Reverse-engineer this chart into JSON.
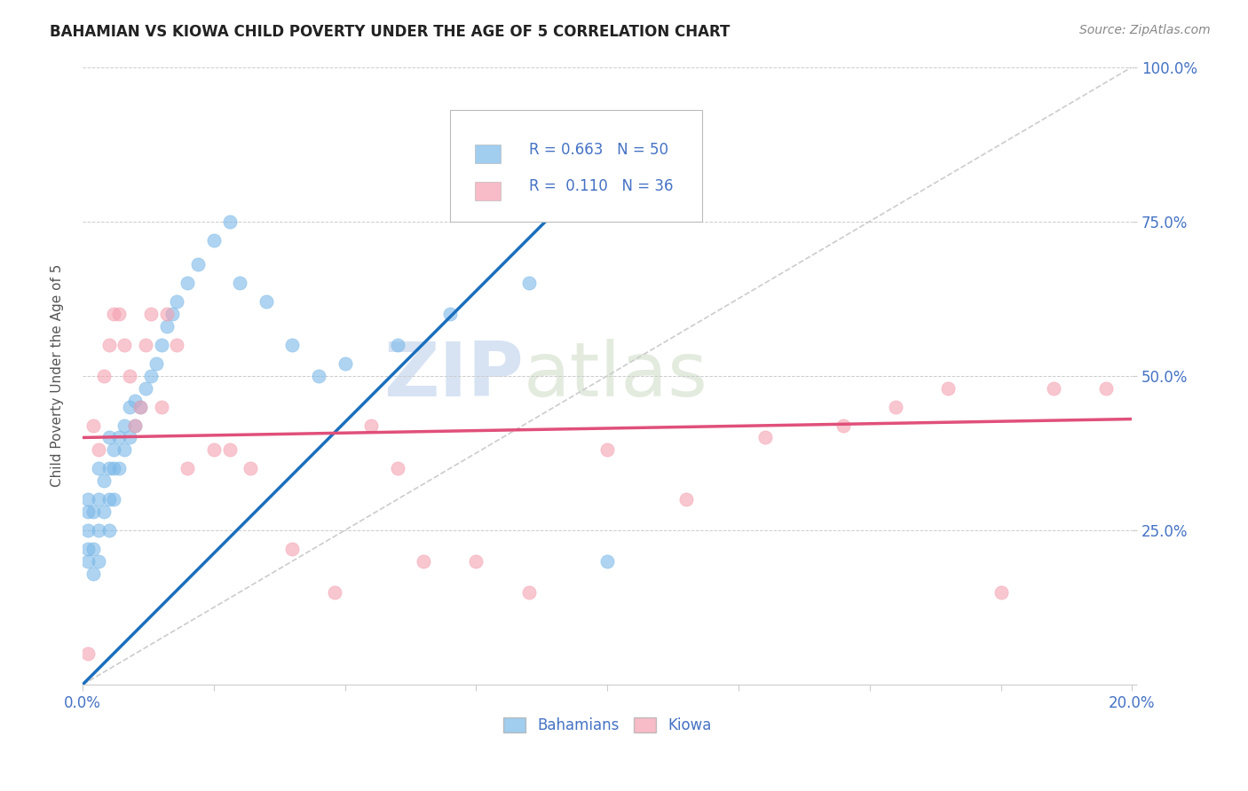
{
  "title": "BAHAMIAN VS KIOWA CHILD POVERTY UNDER THE AGE OF 5 CORRELATION CHART",
  "source_text": "Source: ZipAtlas.com",
  "ylabel": "Child Poverty Under the Age of 5",
  "xlim": [
    0.0,
    0.2
  ],
  "ylim": [
    0.0,
    1.0
  ],
  "xticks": [
    0.0,
    0.025,
    0.05,
    0.075,
    0.1,
    0.125,
    0.15,
    0.175,
    0.2
  ],
  "xticklabels": [
    "0.0%",
    "",
    "",
    "",
    "",
    "",
    "",
    "",
    "20.0%"
  ],
  "yticks": [
    0.0,
    0.25,
    0.5,
    0.75,
    1.0
  ],
  "right_yticklabels": [
    "",
    "25.0%",
    "50.0%",
    "75.0%",
    "100.0%"
  ],
  "bahamian_color": "#7ab8e8",
  "kiowa_color": "#f4a0b0",
  "bahamian_line_color": "#1a6fbd",
  "kiowa_line_color": "#e0507a",
  "bahamian_r": 0.663,
  "bahamian_n": 50,
  "kiowa_r": 0.11,
  "kiowa_n": 36,
  "legend_labels": [
    "Bahamians",
    "Kiowa"
  ],
  "watermark_zip": "ZIP",
  "watermark_atlas": "atlas",
  "bahamian_x": [
    0.001,
    0.001,
    0.001,
    0.001,
    0.001,
    0.002,
    0.002,
    0.002,
    0.003,
    0.003,
    0.003,
    0.003,
    0.004,
    0.004,
    0.005,
    0.005,
    0.005,
    0.005,
    0.006,
    0.006,
    0.006,
    0.007,
    0.007,
    0.008,
    0.008,
    0.009,
    0.009,
    0.01,
    0.01,
    0.011,
    0.012,
    0.013,
    0.014,
    0.015,
    0.016,
    0.017,
    0.018,
    0.02,
    0.022,
    0.025,
    0.028,
    0.03,
    0.035,
    0.04,
    0.045,
    0.05,
    0.06,
    0.07,
    0.085,
    0.1
  ],
  "bahamian_y": [
    0.2,
    0.22,
    0.25,
    0.28,
    0.3,
    0.18,
    0.22,
    0.28,
    0.2,
    0.25,
    0.3,
    0.35,
    0.28,
    0.33,
    0.25,
    0.3,
    0.35,
    0.4,
    0.3,
    0.35,
    0.38,
    0.35,
    0.4,
    0.38,
    0.42,
    0.4,
    0.45,
    0.42,
    0.46,
    0.45,
    0.48,
    0.5,
    0.52,
    0.55,
    0.58,
    0.6,
    0.62,
    0.65,
    0.68,
    0.72,
    0.75,
    0.65,
    0.62,
    0.55,
    0.5,
    0.52,
    0.55,
    0.6,
    0.65,
    0.2
  ],
  "kiowa_x": [
    0.001,
    0.002,
    0.003,
    0.004,
    0.005,
    0.006,
    0.007,
    0.008,
    0.009,
    0.01,
    0.011,
    0.012,
    0.013,
    0.015,
    0.016,
    0.018,
    0.02,
    0.025,
    0.028,
    0.032,
    0.04,
    0.048,
    0.055,
    0.06,
    0.065,
    0.075,
    0.085,
    0.1,
    0.115,
    0.13,
    0.145,
    0.155,
    0.165,
    0.175,
    0.185,
    0.195
  ],
  "kiowa_y": [
    0.05,
    0.42,
    0.38,
    0.5,
    0.55,
    0.6,
    0.6,
    0.55,
    0.5,
    0.42,
    0.45,
    0.55,
    0.6,
    0.45,
    0.6,
    0.55,
    0.35,
    0.38,
    0.38,
    0.35,
    0.22,
    0.15,
    0.42,
    0.35,
    0.2,
    0.2,
    0.15,
    0.38,
    0.3,
    0.4,
    0.42,
    0.45,
    0.48,
    0.15,
    0.48,
    0.48
  ],
  "bahamian_trendline_x": [
    0.0,
    0.1
  ],
  "bahamian_trendline_y": [
    0.0,
    0.85
  ],
  "kiowa_trendline_x": [
    0.0,
    0.2
  ],
  "kiowa_trendline_y": [
    0.4,
    0.43
  ]
}
